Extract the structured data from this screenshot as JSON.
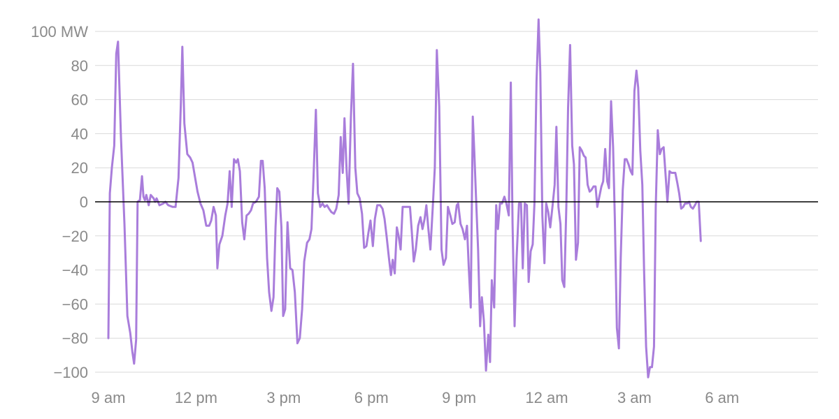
{
  "chart_data": {
    "type": "line",
    "title": "",
    "xlabel": "",
    "ylabel": "",
    "unit": "MW",
    "ylim": [
      -100,
      100
    ],
    "xlim_hours": [
      0,
      24
    ],
    "grid": true,
    "y_ticks": [
      {
        "value": 100,
        "label": "100 MW"
      },
      {
        "value": 80,
        "label": "80"
      },
      {
        "value": 60,
        "label": "60"
      },
      {
        "value": 40,
        "label": "40"
      },
      {
        "value": 20,
        "label": "20"
      },
      {
        "value": 0,
        "label": "0"
      },
      {
        "value": -20,
        "label": "−20"
      },
      {
        "value": -40,
        "label": "−40"
      },
      {
        "value": -60,
        "label": "−60"
      },
      {
        "value": -80,
        "label": "−80"
      },
      {
        "value": -100,
        "label": "−100"
      }
    ],
    "x_ticks": [
      {
        "hours": 0,
        "label": "9 am"
      },
      {
        "hours": 3,
        "label": "12 pm"
      },
      {
        "hours": 6,
        "label": "3 pm"
      },
      {
        "hours": 9,
        "label": "6 pm"
      },
      {
        "hours": 12,
        "label": "9 pm"
      },
      {
        "hours": 15,
        "label": "12 am"
      },
      {
        "hours": 18,
        "label": "3 am"
      },
      {
        "hours": 21,
        "label": "6 am"
      }
    ],
    "colors": {
      "series": "#a97ddb",
      "zero_line": "#000000",
      "grid": "#d9d9d9",
      "tick_text": "#8a8a8a"
    },
    "series": [
      {
        "color": "#a97ddb",
        "points": [
          [
            0.0,
            -80
          ],
          [
            0.05,
            5
          ],
          [
            0.12,
            20
          ],
          [
            0.2,
            33
          ],
          [
            0.27,
            87
          ],
          [
            0.33,
            94
          ],
          [
            0.43,
            38
          ],
          [
            0.55,
            -13
          ],
          [
            0.65,
            -67
          ],
          [
            0.75,
            -77
          ],
          [
            0.82,
            -88
          ],
          [
            0.88,
            -95
          ],
          [
            0.95,
            -81
          ],
          [
            1.0,
            0
          ],
          [
            1.08,
            1
          ],
          [
            1.15,
            15
          ],
          [
            1.2,
            3
          ],
          [
            1.25,
            1
          ],
          [
            1.3,
            4
          ],
          [
            1.38,
            -2
          ],
          [
            1.45,
            4
          ],
          [
            1.55,
            2
          ],
          [
            1.6,
            0
          ],
          [
            1.65,
            2
          ],
          [
            1.75,
            -2
          ],
          [
            1.88,
            -1
          ],
          [
            1.95,
            0
          ],
          [
            2.05,
            -2
          ],
          [
            2.2,
            -3
          ],
          [
            2.3,
            -3
          ],
          [
            2.4,
            14
          ],
          [
            2.48,
            58
          ],
          [
            2.53,
            91
          ],
          [
            2.6,
            46
          ],
          [
            2.7,
            28
          ],
          [
            2.8,
            26
          ],
          [
            2.88,
            23
          ],
          [
            2.95,
            16
          ],
          [
            3.05,
            6
          ],
          [
            3.15,
            -1
          ],
          [
            3.25,
            -5
          ],
          [
            3.35,
            -14
          ],
          [
            3.45,
            -14
          ],
          [
            3.52,
            -11
          ],
          [
            3.6,
            -3
          ],
          [
            3.68,
            -8
          ],
          [
            3.73,
            -39
          ],
          [
            3.8,
            -25
          ],
          [
            3.9,
            -20
          ],
          [
            4.0,
            -8
          ],
          [
            4.08,
            -1
          ],
          [
            4.15,
            18
          ],
          [
            4.22,
            -3
          ],
          [
            4.3,
            25
          ],
          [
            4.37,
            23
          ],
          [
            4.43,
            25
          ],
          [
            4.5,
            18
          ],
          [
            4.58,
            -12
          ],
          [
            4.65,
            -22
          ],
          [
            4.73,
            -8
          ],
          [
            4.8,
            -7
          ],
          [
            4.88,
            -5
          ],
          [
            4.95,
            -1
          ],
          [
            5.05,
            0
          ],
          [
            5.15,
            3
          ],
          [
            5.22,
            24
          ],
          [
            5.28,
            24
          ],
          [
            5.35,
            8
          ],
          [
            5.43,
            -33
          ],
          [
            5.5,
            -53
          ],
          [
            5.58,
            -64
          ],
          [
            5.65,
            -56
          ],
          [
            5.72,
            -15
          ],
          [
            5.78,
            8
          ],
          [
            5.85,
            6
          ],
          [
            5.92,
            -15
          ],
          [
            5.98,
            -67
          ],
          [
            6.05,
            -63
          ],
          [
            6.13,
            -12
          ],
          [
            6.22,
            -39
          ],
          [
            6.3,
            -40
          ],
          [
            6.38,
            -53
          ],
          [
            6.47,
            -83
          ],
          [
            6.55,
            -80
          ],
          [
            6.63,
            -63
          ],
          [
            6.7,
            -35
          ],
          [
            6.8,
            -24
          ],
          [
            6.88,
            -22
          ],
          [
            6.95,
            -16
          ],
          [
            7.02,
            14
          ],
          [
            7.1,
            54
          ],
          [
            7.17,
            5
          ],
          [
            7.25,
            -3
          ],
          [
            7.33,
            -1
          ],
          [
            7.4,
            -3
          ],
          [
            7.48,
            -2
          ],
          [
            7.55,
            -4
          ],
          [
            7.63,
            -6
          ],
          [
            7.72,
            -7
          ],
          [
            7.8,
            -4
          ],
          [
            7.88,
            4
          ],
          [
            7.95,
            38
          ],
          [
            8.02,
            17
          ],
          [
            8.08,
            49
          ],
          [
            8.15,
            19
          ],
          [
            8.22,
            -1
          ],
          [
            8.3,
            50
          ],
          [
            8.37,
            81
          ],
          [
            8.45,
            20
          ],
          [
            8.52,
            5
          ],
          [
            8.6,
            2
          ],
          [
            8.68,
            -7
          ],
          [
            8.75,
            -27
          ],
          [
            8.83,
            -26
          ],
          [
            8.9,
            -18
          ],
          [
            8.97,
            -11
          ],
          [
            9.05,
            -26
          ],
          [
            9.12,
            -10
          ],
          [
            9.2,
            -2
          ],
          [
            9.3,
            -2
          ],
          [
            9.38,
            -4
          ],
          [
            9.45,
            -10
          ],
          [
            9.52,
            -20
          ],
          [
            9.6,
            -33
          ],
          [
            9.67,
            -43
          ],
          [
            9.73,
            -34
          ],
          [
            9.8,
            -42
          ],
          [
            9.87,
            -15
          ],
          [
            9.93,
            -20
          ],
          [
            10.0,
            -28
          ],
          [
            10.07,
            -3
          ],
          [
            10.15,
            -3
          ],
          [
            10.25,
            -3
          ],
          [
            10.32,
            -3
          ],
          [
            10.38,
            -17
          ],
          [
            10.45,
            -35
          ],
          [
            10.52,
            -28
          ],
          [
            10.6,
            -14
          ],
          [
            10.68,
            -9
          ],
          [
            10.75,
            -16
          ],
          [
            10.82,
            -10
          ],
          [
            10.88,
            -2
          ],
          [
            10.95,
            -16
          ],
          [
            11.02,
            -28
          ],
          [
            11.1,
            -3
          ],
          [
            11.17,
            20
          ],
          [
            11.24,
            89
          ],
          [
            11.32,
            56
          ],
          [
            11.4,
            -28
          ],
          [
            11.47,
            -37
          ],
          [
            11.55,
            -33
          ],
          [
            11.62,
            -3
          ],
          [
            11.7,
            -8
          ],
          [
            11.77,
            -13
          ],
          [
            11.85,
            -12
          ],
          [
            11.92,
            -2
          ],
          [
            11.97,
            -1
          ],
          [
            12.05,
            -13
          ],
          [
            12.12,
            -16
          ],
          [
            12.2,
            -22
          ],
          [
            12.27,
            -14
          ],
          [
            12.33,
            -38
          ],
          [
            12.4,
            -62
          ],
          [
            12.47,
            50
          ],
          [
            12.52,
            30
          ],
          [
            12.58,
            3
          ],
          [
            12.65,
            -28
          ],
          [
            12.72,
            -73
          ],
          [
            12.78,
            -56
          ],
          [
            12.85,
            -70
          ],
          [
            12.92,
            -99
          ],
          [
            13.0,
            -78
          ],
          [
            13.06,
            -94
          ],
          [
            13.12,
            -46
          ],
          [
            13.2,
            -62
          ],
          [
            13.27,
            -2
          ],
          [
            13.33,
            -16
          ],
          [
            13.4,
            -1
          ],
          [
            13.47,
            -1
          ],
          [
            13.55,
            3
          ],
          [
            13.62,
            -1
          ],
          [
            13.7,
            -8
          ],
          [
            13.77,
            70
          ],
          [
            13.83,
            -13
          ],
          [
            13.9,
            -73
          ],
          [
            13.97,
            -33
          ],
          [
            14.05,
            -1
          ],
          [
            14.12,
            -1
          ],
          [
            14.18,
            -39
          ],
          [
            14.25,
            -1
          ],
          [
            14.32,
            -2
          ],
          [
            14.38,
            -47
          ],
          [
            14.45,
            -29
          ],
          [
            14.52,
            -25
          ],
          [
            14.58,
            -1
          ],
          [
            14.65,
            71
          ],
          [
            14.72,
            107
          ],
          [
            14.78,
            76
          ],
          [
            14.85,
            -8
          ],
          [
            14.92,
            -36
          ],
          [
            14.98,
            -1
          ],
          [
            15.05,
            -6
          ],
          [
            15.12,
            -15
          ],
          [
            15.2,
            -2
          ],
          [
            15.27,
            10
          ],
          [
            15.33,
            44
          ],
          [
            15.4,
            -3
          ],
          [
            15.47,
            -13
          ],
          [
            15.53,
            -46
          ],
          [
            15.6,
            -50
          ],
          [
            15.67,
            -3
          ],
          [
            15.73,
            55
          ],
          [
            15.8,
            92
          ],
          [
            15.87,
            33
          ],
          [
            15.93,
            22
          ],
          [
            16.0,
            -34
          ],
          [
            16.07,
            -24
          ],
          [
            16.13,
            32
          ],
          [
            16.2,
            30
          ],
          [
            16.27,
            27
          ],
          [
            16.33,
            26
          ],
          [
            16.4,
            10
          ],
          [
            16.47,
            6
          ],
          [
            16.53,
            7
          ],
          [
            16.6,
            9
          ],
          [
            16.67,
            9
          ],
          [
            16.73,
            -3
          ],
          [
            16.8,
            3
          ],
          [
            16.87,
            9
          ],
          [
            16.93,
            12
          ],
          [
            17.0,
            31
          ],
          [
            17.07,
            12
          ],
          [
            17.13,
            8
          ],
          [
            17.2,
            59
          ],
          [
            17.27,
            32
          ],
          [
            17.33,
            -10
          ],
          [
            17.4,
            -74
          ],
          [
            17.47,
            -86
          ],
          [
            17.53,
            -33
          ],
          [
            17.6,
            7
          ],
          [
            17.67,
            25
          ],
          [
            17.73,
            25
          ],
          [
            17.8,
            22
          ],
          [
            17.87,
            18
          ],
          [
            17.93,
            16
          ],
          [
            18.0,
            65
          ],
          [
            18.07,
            77
          ],
          [
            18.13,
            67
          ],
          [
            18.2,
            30
          ],
          [
            18.27,
            10
          ],
          [
            18.33,
            -40
          ],
          [
            18.4,
            -85
          ],
          [
            18.47,
            -103
          ],
          [
            18.53,
            -97
          ],
          [
            18.6,
            -97
          ],
          [
            18.67,
            -85
          ],
          [
            18.73,
            -3
          ],
          [
            18.8,
            42
          ],
          [
            18.87,
            28
          ],
          [
            18.93,
            31
          ],
          [
            19.0,
            32
          ],
          [
            19.07,
            15
          ],
          [
            19.13,
            0
          ],
          [
            19.2,
            18
          ],
          [
            19.27,
            17
          ],
          [
            19.33,
            17
          ],
          [
            19.4,
            17
          ],
          [
            19.47,
            11
          ],
          [
            19.53,
            5
          ],
          [
            19.6,
            -4
          ],
          [
            19.67,
            -3
          ],
          [
            19.73,
            -1
          ],
          [
            19.8,
            -1
          ],
          [
            19.87,
            0
          ],
          [
            19.93,
            -3
          ],
          [
            20.0,
            -4
          ],
          [
            20.07,
            -2
          ],
          [
            20.13,
            0
          ],
          [
            20.2,
            0
          ],
          [
            20.27,
            -23
          ]
        ]
      }
    ]
  }
}
